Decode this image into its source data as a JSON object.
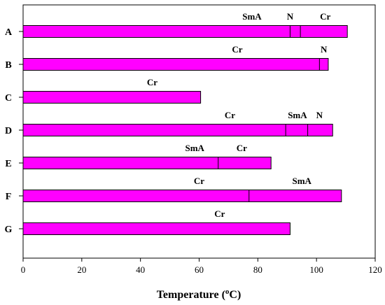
{
  "chart_data": {
    "type": "bar",
    "orientation": "horizontal",
    "categories": [
      "A",
      "B",
      "C",
      "D",
      "E",
      "F",
      "G"
    ],
    "xlabel": {
      "prefix": "Temperature (",
      "sup": "o",
      "suffix": "C)"
    },
    "xlim": [
      0,
      120
    ],
    "xticks": [
      0,
      20,
      40,
      60,
      80,
      100,
      120
    ],
    "grid": false,
    "legend": "none",
    "bar_color": "#ff00ff",
    "bars": [
      {
        "category": "A",
        "end": 110.5,
        "transitions": [
          91,
          94.5
        ],
        "labels": [
          {
            "text": "SmA",
            "x": 78
          },
          {
            "text": "N",
            "x": 91
          },
          {
            "text": "Cr",
            "x": 103
          }
        ]
      },
      {
        "category": "B",
        "end": 104,
        "transitions": [
          101
        ],
        "labels": [
          {
            "text": "Cr",
            "x": 73
          },
          {
            "text": "N",
            "x": 102.5
          }
        ]
      },
      {
        "category": "C",
        "end": 60.5,
        "transitions": [],
        "labels": [
          {
            "text": "Cr",
            "x": 44
          }
        ]
      },
      {
        "category": "D",
        "end": 105.5,
        "transitions": [
          89.5,
          97
        ],
        "labels": [
          {
            "text": "Cr",
            "x": 70.5
          },
          {
            "text": "SmA",
            "x": 93.5
          },
          {
            "text": "N",
            "x": 101
          }
        ]
      },
      {
        "category": "E",
        "end": 84.5,
        "transitions": [
          66.5
        ],
        "labels": [
          {
            "text": "SmA",
            "x": 58.5
          },
          {
            "text": "Cr",
            "x": 74.5
          }
        ]
      },
      {
        "category": "F",
        "end": 108.5,
        "transitions": [
          77
        ],
        "labels": [
          {
            "text": "Cr",
            "x": 60
          },
          {
            "text": "SmA",
            "x": 95
          }
        ]
      },
      {
        "category": "G",
        "end": 91,
        "transitions": [],
        "labels": [
          {
            "text": "Cr",
            "x": 67
          }
        ]
      }
    ]
  }
}
